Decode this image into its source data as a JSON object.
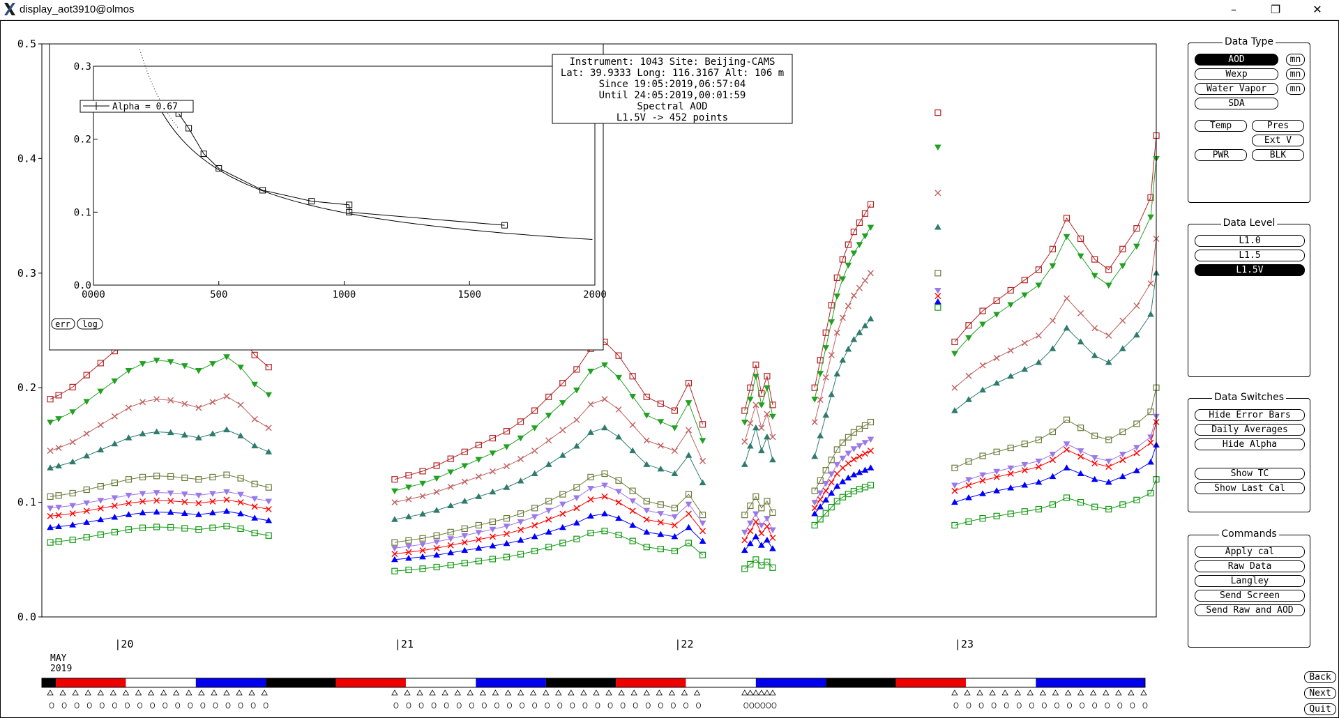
{
  "window": {
    "title": "display_aot3910@olmos"
  },
  "info": {
    "line1": "Instrument: 1043 Site: Beijing-CAMS",
    "line2": "Lat: 39.9333 Long: 116.3167 Alt: 106 m",
    "line3": "Since 19:05:2019,06:57:04",
    "line4": "Until 24:05:2019,00:01:59",
    "line5": "Spectral AOD",
    "line6": "L1.5V -> 452 points"
  },
  "month_label": "MAY",
  "year_label": "2019",
  "inset": {
    "legend": "Alpha = 0.67",
    "err_label": "err",
    "log_label": "log"
  },
  "panels": {
    "data_type": {
      "title": "Data Type",
      "aod": "AOD",
      "wexp": "Wexp",
      "water_vapor": "Water Vapor",
      "sda": "SDA",
      "mn": "mn",
      "temp": "Temp",
      "pres": "Pres",
      "ext_v": "Ext V",
      "pwr": "PWR",
      "blk": "BLK"
    },
    "data_level": {
      "title": "Data Level",
      "l10": "L1.0",
      "l15": "L1.5",
      "l15v": "L1.5V"
    },
    "data_switches": {
      "title": "Data Switches",
      "hide_error_bars": "Hide Error Bars",
      "daily_averages": "Daily Averages",
      "hide_alpha": "Hide Alpha",
      "show_tc": "Show TC",
      "show_last_cal": "Show Last Cal"
    },
    "commands": {
      "title": "Commands",
      "apply_cal": "Apply cal",
      "raw_data": "Raw Data",
      "langley": "Langley",
      "send_screen": "Send Screen",
      "send_raw_aod": "Send Raw and AOD"
    }
  },
  "nav": {
    "back": "Back",
    "next": "Next",
    "quit": "Quit"
  },
  "colors": {
    "black": "#000000",
    "red": "#ee0000",
    "white": "#ffffff",
    "blue": "#0000ee"
  },
  "chart_data": [
    {
      "type": "scatter",
      "title": "",
      "ylim": [
        0.0,
        0.5
      ],
      "yticks": [
        "0.0",
        "0.1",
        "0.2",
        "0.3",
        "0.4",
        "0.5"
      ],
      "xlim": [
        19.74,
        23.72
      ],
      "xticks": [
        {
          "value": 20,
          "label": "|20"
        },
        {
          "value": 21,
          "label": "|21"
        },
        {
          "value": 22,
          "label": "|22"
        },
        {
          "value": 23,
          "label": "|23"
        }
      ],
      "day_bar": [
        {
          "start": 19.74,
          "end": 19.79,
          "color": "black"
        },
        {
          "start": 19.79,
          "end": 20.04,
          "color": "red"
        },
        {
          "start": 20.04,
          "end": 20.29,
          "color": "white"
        },
        {
          "start": 20.29,
          "end": 20.54,
          "color": "blue"
        },
        {
          "start": 20.54,
          "end": 20.79,
          "color": "black"
        },
        {
          "start": 20.79,
          "end": 21.04,
          "color": "red"
        },
        {
          "start": 21.04,
          "end": 21.29,
          "color": "white"
        },
        {
          "start": 21.29,
          "end": 21.54,
          "color": "blue"
        },
        {
          "start": 21.54,
          "end": 21.79,
          "color": "black"
        },
        {
          "start": 21.79,
          "end": 22.04,
          "color": "red"
        },
        {
          "start": 22.04,
          "end": 22.29,
          "color": "white"
        },
        {
          "start": 22.29,
          "end": 22.54,
          "color": "blue"
        },
        {
          "start": 22.54,
          "end": 22.79,
          "color": "black"
        },
        {
          "start": 22.79,
          "end": 23.04,
          "color": "red"
        },
        {
          "start": 23.04,
          "end": 23.29,
          "color": "white"
        },
        {
          "start": 23.29,
          "end": 23.68,
          "color": "blue"
        }
      ],
      "segments": [
        {
          "x": [
            19.77,
            19.8,
            19.85,
            19.9,
            19.95,
            20.0,
            20.05,
            20.1,
            20.15,
            20.2,
            20.25,
            20.3,
            20.35,
            20.4,
            20.45,
            20.5,
            20.55
          ],
          "shape": [
            0.0,
            0.05,
            0.15,
            0.3,
            0.45,
            0.6,
            0.75,
            0.85,
            0.9,
            0.88,
            0.82,
            0.75,
            0.85,
            0.95,
            0.8,
            0.55,
            0.4
          ]
        },
        {
          "x": [
            21.0,
            21.05,
            21.1,
            21.15,
            21.2,
            21.25,
            21.3,
            21.35,
            21.4,
            21.45,
            21.5,
            21.55,
            21.6,
            21.65,
            21.7,
            21.75,
            21.8,
            21.85,
            21.9,
            21.95,
            22.0,
            22.05,
            22.1
          ],
          "shape": [
            0.0,
            0.03,
            0.06,
            0.1,
            0.15,
            0.2,
            0.25,
            0.3,
            0.35,
            0.42,
            0.5,
            0.6,
            0.7,
            0.8,
            0.95,
            1.0,
            0.9,
            0.75,
            0.6,
            0.55,
            0.5,
            0.7,
            0.4
          ]
        },
        {
          "x": [
            22.25,
            22.27,
            22.29,
            22.31,
            22.33,
            22.35
          ],
          "shape": [
            0.2,
            0.6,
            1.0,
            0.5,
            0.8,
            0.3
          ]
        },
        {
          "x": [
            22.5,
            22.52,
            22.54,
            22.56,
            22.58,
            22.6,
            22.62,
            22.64,
            22.66,
            22.68,
            22.7
          ],
          "shape": [
            0.0,
            0.15,
            0.3,
            0.45,
            0.6,
            0.7,
            0.78,
            0.85,
            0.9,
            0.95,
            1.0
          ]
        },
        {
          "x": [
            22.94
          ],
          "shape": [
            1.0
          ]
        },
        {
          "x": [
            23.0,
            23.05,
            23.1,
            23.15,
            23.2,
            23.25,
            23.3,
            23.35,
            23.4,
            23.45,
            23.5,
            23.55,
            23.6,
            23.65,
            23.7,
            23.72
          ],
          "shape": [
            0.0,
            0.08,
            0.15,
            0.2,
            0.25,
            0.3,
            0.35,
            0.45,
            0.6,
            0.5,
            0.4,
            0.35,
            0.45,
            0.55,
            0.7,
            1.0
          ]
        }
      ],
      "series": [
        {
          "marker": "square",
          "color": "#b22222",
          "base": [
            0.19,
            0.12,
            0.17,
            0.2,
            0.44,
            0.24
          ],
          "amp": [
            0.07,
            0.12,
            0.05,
            0.16,
            0.0,
            0.18
          ]
        },
        {
          "marker": "tri-down",
          "color": "#22a022",
          "base": [
            0.17,
            0.11,
            0.16,
            0.19,
            0.41,
            0.23
          ],
          "amp": [
            0.06,
            0.11,
            0.05,
            0.15,
            0.0,
            0.17
          ]
        },
        {
          "marker": "x",
          "color": "#c06060",
          "base": [
            0.145,
            0.1,
            0.145,
            0.17,
            0.37,
            0.2
          ],
          "amp": [
            0.05,
            0.09,
            0.04,
            0.13,
            0.0,
            0.13
          ]
        },
        {
          "marker": "tri-up",
          "color": "#2e7b6e",
          "base": [
            0.13,
            0.085,
            0.125,
            0.14,
            0.34,
            0.18
          ],
          "amp": [
            0.035,
            0.08,
            0.04,
            0.12,
            0.0,
            0.12
          ]
        },
        {
          "marker": "square",
          "color": "#6b7a3a",
          "base": [
            0.105,
            0.065,
            0.085,
            0.11,
            0.3,
            0.13
          ],
          "amp": [
            0.02,
            0.06,
            0.02,
            0.06,
            0.0,
            0.07
          ]
        },
        {
          "marker": "tri-down",
          "color": "#9b79e8",
          "base": [
            0.095,
            0.06,
            0.07,
            0.1,
            0.285,
            0.115
          ],
          "amp": [
            0.015,
            0.055,
            0.02,
            0.055,
            0.0,
            0.06
          ]
        },
        {
          "marker": "x",
          "color": "#ff0000",
          "base": [
            0.088,
            0.055,
            0.063,
            0.095,
            0.28,
            0.11
          ],
          "amp": [
            0.015,
            0.05,
            0.02,
            0.05,
            0.0,
            0.06
          ]
        },
        {
          "marker": "tri-up",
          "color": "#0000ff",
          "base": [
            0.078,
            0.05,
            0.055,
            0.09,
            0.275,
            0.1
          ],
          "amp": [
            0.015,
            0.04,
            0.015,
            0.04,
            0.0,
            0.05
          ]
        },
        {
          "marker": "square",
          "color": "#119911",
          "base": [
            0.065,
            0.04,
            0.04,
            0.08,
            0.27,
            0.08
          ],
          "amp": [
            0.015,
            0.035,
            0.01,
            0.035,
            0.0,
            0.04
          ]
        }
      ]
    },
    {
      "type": "line",
      "title": "",
      "xlim": [
        0,
        2000
      ],
      "ylim": [
        0.0,
        0.3
      ],
      "xticks": [
        {
          "value": 0,
          "label": "0000"
        },
        {
          "value": 500,
          "label": "500"
        },
        {
          "value": 1000,
          "label": "1000"
        },
        {
          "value": 1500,
          "label": "1500"
        },
        {
          "value": 2000,
          "label": "2000"
        }
      ],
      "yticks": [
        "0.0",
        "0.1",
        "0.2",
        "0.3"
      ],
      "points": [
        {
          "x": 340,
          "y": 0.235
        },
        {
          "x": 380,
          "y": 0.215
        },
        {
          "x": 440,
          "y": 0.18
        },
        {
          "x": 500,
          "y": 0.16
        },
        {
          "x": 675,
          "y": 0.13
        },
        {
          "x": 870,
          "y": 0.115
        },
        {
          "x": 1020,
          "y": 0.11
        },
        {
          "x": 1020,
          "y": 0.1
        },
        {
          "x": 1640,
          "y": 0.082
        }
      ],
      "alpha": 0.67,
      "fit_ref": {
        "x": 500,
        "y": 0.158
      }
    }
  ]
}
